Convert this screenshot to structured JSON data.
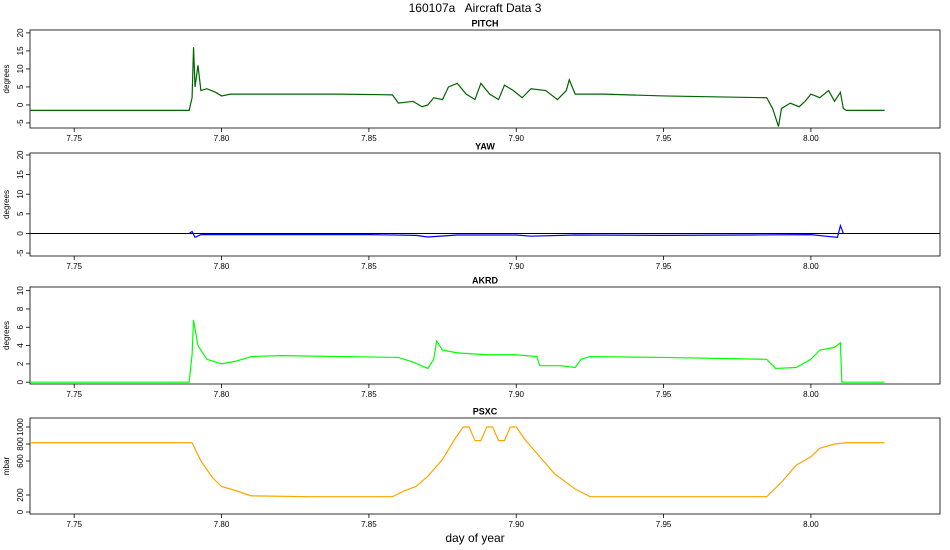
{
  "title": "160107a   Aircraft Data 3",
  "chart_data": [
    {
      "type": "line",
      "title": "PITCH",
      "ylabel": "degrees",
      "color": "#006400",
      "x": [
        7.735,
        7.789,
        7.79,
        7.7905,
        7.791,
        7.792,
        7.793,
        7.795,
        7.798,
        7.8,
        7.803,
        7.806,
        7.81,
        7.82,
        7.84,
        7.858,
        7.86,
        7.865,
        7.868,
        7.87,
        7.872,
        7.875,
        7.877,
        7.88,
        7.883,
        7.886,
        7.888,
        7.891,
        7.894,
        7.896,
        7.899,
        7.902,
        7.905,
        7.91,
        7.914,
        7.917,
        7.918,
        7.92,
        7.93,
        7.95,
        7.985,
        7.987,
        7.989,
        7.99,
        7.993,
        7.996,
        7.998,
        8.0,
        8.003,
        8.006,
        8.008,
        8.01,
        8.011,
        8.012,
        8.025
      ],
      "values": [
        -1.5,
        -1.5,
        2,
        16,
        5,
        11,
        4,
        4.5,
        3.5,
        2.5,
        3,
        3,
        3,
        3,
        3,
        2.8,
        0.5,
        1,
        -0.5,
        0,
        2,
        1.5,
        5,
        6,
        3,
        1.5,
        6,
        3,
        1.5,
        5.5,
        4,
        2,
        4.5,
        4,
        1.5,
        4,
        7,
        3,
        3,
        2.5,
        2,
        -1,
        -6,
        -1,
        0.5,
        -0.5,
        1,
        3,
        2,
        4,
        1,
        3.5,
        -1,
        -1.5,
        -1.5
      ],
      "xlim": [
        7.735,
        8.0438
      ],
      "ylim": [
        -6.4,
        20.8
      ],
      "xticks": [
        7.75,
        {
          "value": 7.8,
          "label": "7.80"
        },
        7.85,
        {
          "value": 7.9,
          "label": "7.90"
        },
        7.95,
        {
          "value": 8.0,
          "label": "8.00"
        }
      ],
      "yticks": [
        -5,
        0,
        5,
        10,
        15,
        20
      ]
    },
    {
      "type": "line",
      "title": "YAW",
      "ylabel": "degrees",
      "color": "#0000ff",
      "hline": 0,
      "x": [
        7.789,
        7.79,
        7.791,
        7.793,
        7.85,
        7.866,
        7.87,
        7.88,
        7.9,
        7.905,
        7.92,
        7.95,
        7.98,
        8.0,
        8.005,
        8.009,
        8.01,
        8.011
      ],
      "values": [
        0,
        0.5,
        -1,
        -0.3,
        -0.3,
        -0.5,
        -0.9,
        -0.4,
        -0.4,
        -0.7,
        -0.4,
        -0.5,
        -0.4,
        -0.3,
        -0.7,
        -1,
        2,
        0
      ],
      "xlim": [
        7.735,
        8.0438
      ],
      "ylim": [
        -5.75,
        20.5
      ],
      "xticks": [
        7.75,
        {
          "value": 7.8,
          "label": "7.80"
        },
        7.85,
        {
          "value": 7.9,
          "label": "7.90"
        },
        7.95,
        {
          "value": 8.0,
          "label": "8.00"
        }
      ],
      "yticks": [
        -5,
        0,
        5,
        10,
        15,
        20
      ]
    },
    {
      "type": "line",
      "title": "AKRD",
      "ylabel": "degrees",
      "color": "#00ff00",
      "x": [
        7.735,
        7.789,
        7.79,
        7.7905,
        7.792,
        7.795,
        7.8,
        7.805,
        7.81,
        7.82,
        7.86,
        7.865,
        7.87,
        7.872,
        7.873,
        7.875,
        7.88,
        7.89,
        7.9,
        7.907,
        7.908,
        7.915,
        7.92,
        7.922,
        7.925,
        7.95,
        7.985,
        7.988,
        7.995,
        8.0,
        8.003,
        8.008,
        8.01,
        8.0105,
        8.025
      ],
      "values": [
        0,
        0,
        3,
        6.8,
        4,
        2.5,
        2,
        2.3,
        2.8,
        2.9,
        2.7,
        2.2,
        1.5,
        2.5,
        4.5,
        3.5,
        3.2,
        3,
        3,
        2.8,
        1.8,
        1.8,
        1.6,
        2.5,
        2.8,
        2.7,
        2.5,
        1.5,
        1.6,
        2.5,
        3.5,
        3.8,
        4.3,
        0,
        0
      ],
      "xlim": [
        7.735,
        8.0438
      ],
      "ylim": [
        -0.2,
        10.4
      ],
      "xticks": [
        7.75,
        {
          "value": 7.8,
          "label": "7.80"
        },
        7.85,
        {
          "value": 7.9,
          "label": "7.90"
        },
        7.95,
        {
          "value": 8.0,
          "label": "8.00"
        }
      ],
      "yticks": [
        0,
        2,
        4,
        6,
        8,
        10
      ]
    },
    {
      "type": "line",
      "title": "PSXC",
      "ylabel": "mbar",
      "xlabel": "day of year",
      "color": "#ffa500",
      "x": [
        7.735,
        7.79,
        7.793,
        7.797,
        7.8,
        7.805,
        7.81,
        7.83,
        7.858,
        7.862,
        7.866,
        7.87,
        7.875,
        7.879,
        7.882,
        7.884,
        7.886,
        7.888,
        7.89,
        7.892,
        7.894,
        7.896,
        7.898,
        7.9,
        7.903,
        7.908,
        7.913,
        7.92,
        7.925,
        7.95,
        7.985,
        7.99,
        7.995,
        8.0,
        8.003,
        8.008,
        8.012,
        8.025
      ],
      "values": [
        815,
        815,
        600,
        400,
        300,
        250,
        190,
        180,
        180,
        250,
        300,
        420,
        620,
        850,
        1000,
        1000,
        840,
        840,
        1000,
        1000,
        840,
        840,
        1000,
        1000,
        850,
        650,
        450,
        270,
        180,
        180,
        180,
        350,
        550,
        650,
        750,
        800,
        815,
        815
      ],
      "xlim": [
        7.735,
        8.0438
      ],
      "ylim": [
        -23.5,
        1106
      ],
      "xticks": [
        7.75,
        {
          "value": 7.8,
          "label": "7.80"
        },
        7.85,
        {
          "value": 7.9,
          "label": "7.90"
        },
        7.95,
        {
          "value": 8.0,
          "label": "8.00"
        }
      ],
      "yticks": [
        0,
        200,
        600,
        800,
        1000
      ]
    }
  ]
}
